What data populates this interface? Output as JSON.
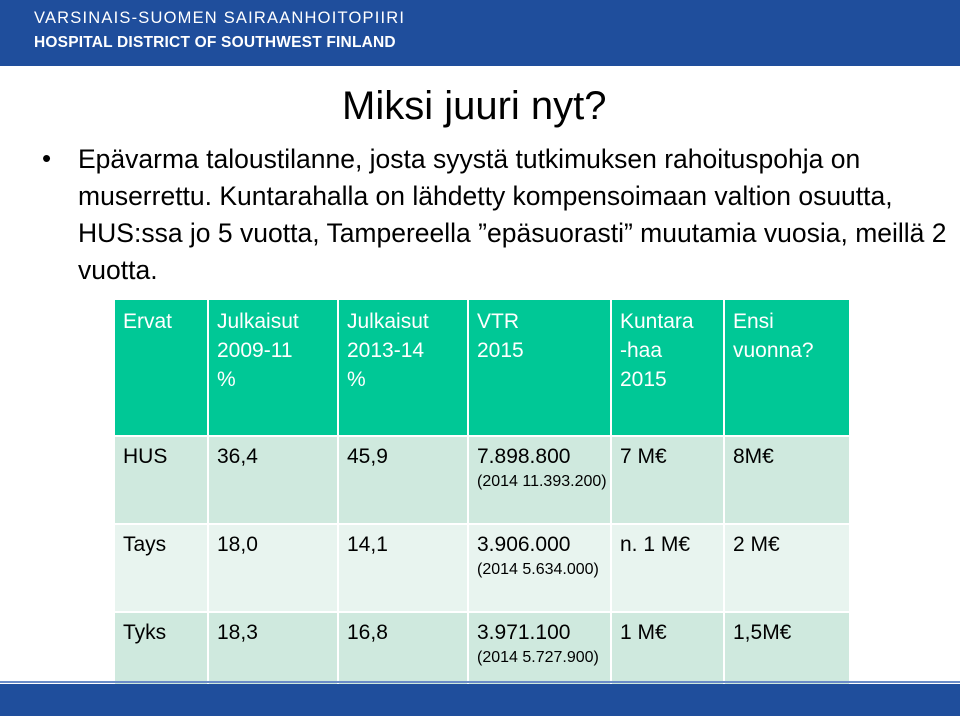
{
  "header": {
    "line1": "VARSINAIS-SUOMEN SAIRAANHOITOPIIRI",
    "line2": "HOSPITAL DISTRICT OF SOUTHWEST FINLAND"
  },
  "slide": {
    "title": "Miksi juuri nyt?",
    "bullet": "Epävarma taloustilanne, josta syystä tutkimuksen rahoituspohja on muserrettu. Kuntarahalla on lähdetty kompensoimaan valtion osuutta, HUS:ssa jo 5 vuotta, Tampereella ”epäsuorasti” muutamia vuosia, meillä 2 vuotta."
  },
  "table": {
    "headers": [
      {
        "line1": "Ervat",
        "line2": "",
        "line3": ""
      },
      {
        "line1": "Julkaisut",
        "line2": "2009-11",
        "line3": "%"
      },
      {
        "line1": "Julkaisut",
        "line2": "2013-14",
        "line3": "%"
      },
      {
        "line1": "VTR",
        "line2": "2015",
        "line3": ""
      },
      {
        "line1": "Kuntara",
        "line2": "-haa",
        "line3": "2015"
      },
      {
        "line1": "Ensi",
        "line2": "vuonna?",
        "line3": ""
      }
    ],
    "rows": [
      {
        "erva": "HUS",
        "pub1": "36,4",
        "pub2": "45,9",
        "vtr": "7.898.800",
        "vtr_sub": "(2014 11.393.200)",
        "kunta": "7 M€",
        "ensi": "8M€"
      },
      {
        "erva": "Tays",
        "pub1": "18,0",
        "pub2": "14,1",
        "vtr": "3.906.000",
        "vtr_sub": "(2014 5.634.000)",
        "kunta": "n. 1 M€",
        "ensi": "2 M€"
      },
      {
        "erva": "Tyks",
        "pub1": "18,3",
        "pub2": "16,8",
        "vtr": "3.971.100",
        "vtr_sub": "(2014 5.727.900)",
        "kunta": "1 M€",
        "ensi": "1,5M€"
      }
    ]
  },
  "colors": {
    "header_bg": "#1f4e9c",
    "table_head": "#00c896",
    "row_dark": "#cfe9de",
    "row_light": "#e8f4ef"
  }
}
